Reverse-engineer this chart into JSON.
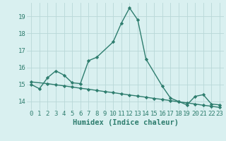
{
  "line1_x": [
    0,
    1,
    2,
    3,
    4,
    5,
    6,
    7,
    8,
    10,
    11,
    12,
    13,
    14,
    16,
    17,
    18,
    19,
    20,
    21,
    22,
    23
  ],
  "line1_y": [
    15.0,
    14.75,
    15.4,
    15.8,
    15.55,
    15.1,
    15.05,
    16.4,
    16.6,
    17.5,
    18.6,
    19.5,
    18.8,
    16.5,
    14.9,
    14.2,
    14.0,
    13.8,
    14.3,
    14.4,
    13.85,
    13.8
  ],
  "line2_x": [
    0,
    2,
    3,
    4,
    5,
    6,
    7,
    8,
    9,
    10,
    11,
    12,
    13,
    14,
    15,
    16,
    17,
    18,
    19,
    20,
    21,
    22,
    23
  ],
  "line2_y": [
    15.15,
    15.05,
    14.98,
    14.92,
    14.85,
    14.78,
    14.72,
    14.65,
    14.58,
    14.52,
    14.45,
    14.38,
    14.32,
    14.25,
    14.18,
    14.12,
    14.05,
    13.98,
    13.92,
    13.85,
    13.78,
    13.72,
    13.65
  ],
  "color": "#2e7d6e",
  "bg_color": "#d9f0f0",
  "grid_color": "#b8d8d8",
  "xlabel": "Humidex (Indice chaleur)",
  "xlim": [
    -0.5,
    23.5
  ],
  "ylim": [
    13.5,
    19.8
  ],
  "yticks": [
    14,
    15,
    16,
    17,
    18,
    19
  ],
  "xticks": [
    0,
    1,
    2,
    3,
    4,
    5,
    6,
    7,
    8,
    9,
    10,
    11,
    12,
    13,
    14,
    15,
    16,
    17,
    18,
    19,
    20,
    21,
    22,
    23
  ],
  "marker": "D",
  "markersize": 2.2,
  "linewidth": 1.0,
  "xlabel_fontsize": 7.5,
  "tick_fontsize": 6.5
}
